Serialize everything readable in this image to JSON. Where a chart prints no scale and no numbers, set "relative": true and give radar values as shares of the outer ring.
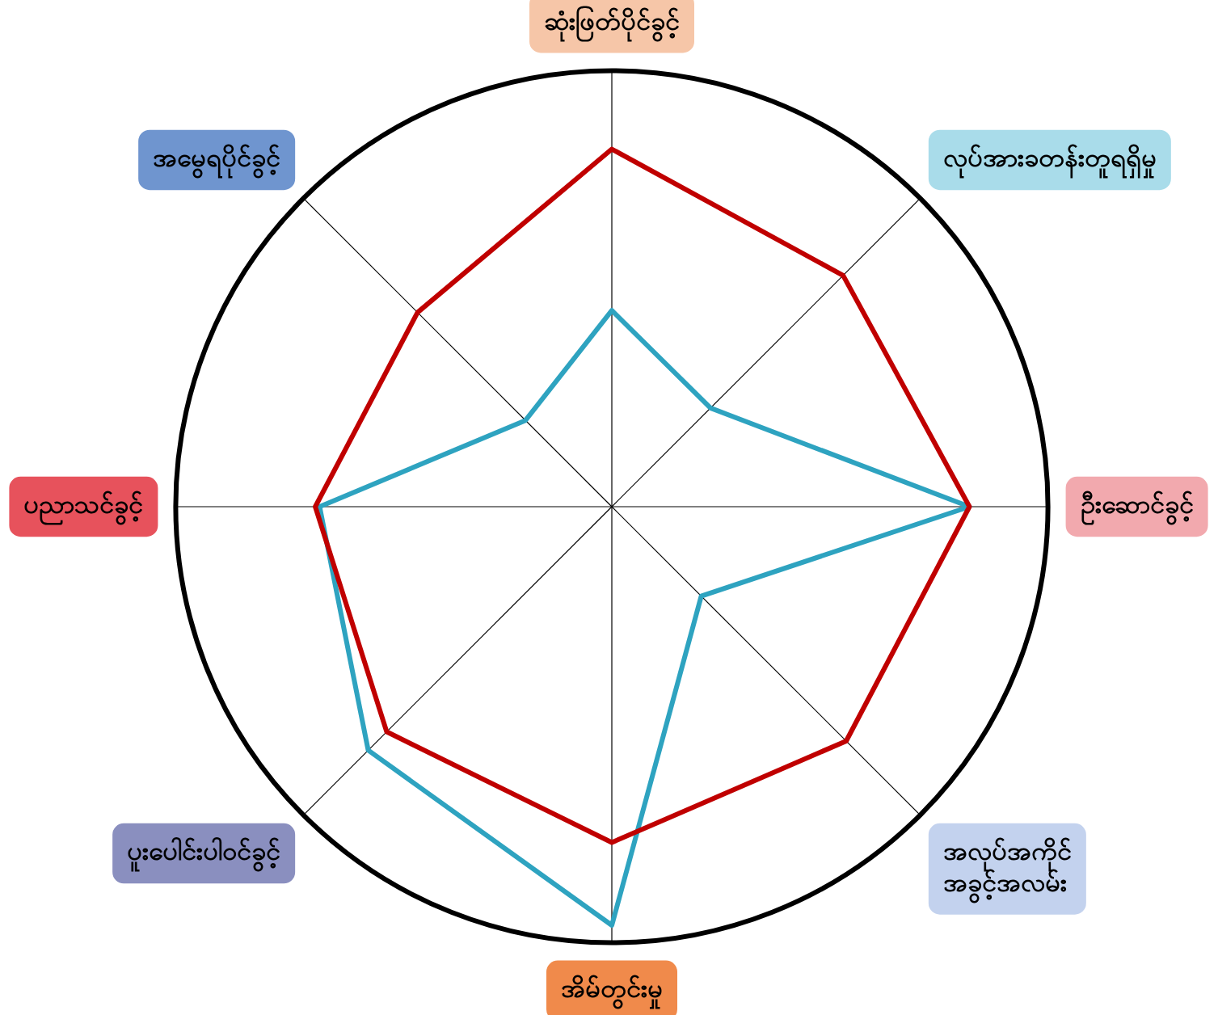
{
  "chart_data": {
    "type": "radar",
    "relative": true,
    "grid": true,
    "marker": "none",
    "categories": [
      "ဆုံးဖြတ်ပိုင်ခွင့်",
      "လုပ်အားခတန်းတူရရှိမှု",
      "ဦးဆောင်ခွင့်",
      "အလုပ်အကိုင် အခွင့်အလမ်း",
      "အိမ်တွင်းမှု",
      "ပူးပေါင်းပါဝင်ခွင့်",
      "ပညာသင်ခွင့်",
      "အမွေရပိုင်ခွင့်"
    ],
    "series": [
      {
        "color": "#c00000",
        "values": [
          0.82,
          0.75,
          0.82,
          0.76,
          0.77,
          0.73,
          0.68,
          0.63
        ]
      },
      {
        "color": "#2ea3c0",
        "values": [
          0.45,
          0.32,
          0.82,
          0.29,
          0.96,
          0.79,
          0.67,
          0.28
        ]
      }
    ]
  }
}
